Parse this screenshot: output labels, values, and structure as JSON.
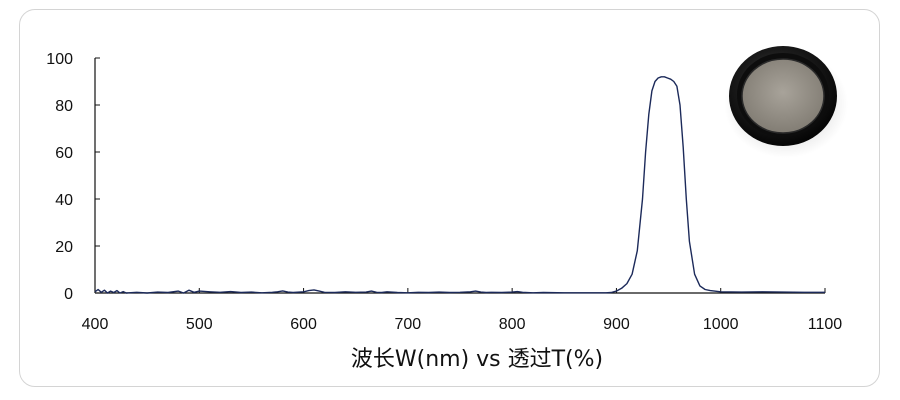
{
  "chart_data": {
    "type": "line",
    "title": "",
    "xlabel": "波长W(nm) vs 透过T(%)",
    "ylabel": "",
    "xlim": [
      400,
      1100
    ],
    "ylim": [
      0,
      100
    ],
    "x_ticks": [
      400,
      500,
      600,
      700,
      800,
      900,
      1000,
      1100
    ],
    "y_ticks": [
      0,
      20,
      40,
      60,
      80,
      100
    ],
    "grid": false,
    "series": [
      {
        "color": "#1c2a5a",
        "x": [
          400,
          403,
          406,
          409,
          412,
          415,
          418,
          421,
          424,
          427,
          430,
          440,
          450,
          460,
          470,
          480,
          485,
          490,
          495,
          500,
          510,
          520,
          530,
          540,
          550,
          560,
          570,
          575,
          580,
          585,
          590,
          600,
          605,
          610,
          615,
          620,
          630,
          640,
          650,
          660,
          665,
          670,
          675,
          680,
          690,
          700,
          710,
          720,
          730,
          740,
          750,
          760,
          765,
          770,
          775,
          780,
          790,
          800,
          805,
          810,
          820,
          830,
          850,
          870,
          880,
          890,
          895,
          900,
          905,
          910,
          915,
          920,
          925,
          928,
          931,
          934,
          937,
          940,
          943,
          946,
          949,
          952,
          955,
          958,
          961,
          964,
          967,
          970,
          975,
          980,
          985,
          990,
          1000,
          1020,
          1040,
          1060,
          1080,
          1100
        ],
        "values": [
          0.5,
          1.5,
          0.3,
          1.2,
          0,
          0.8,
          0.2,
          1.0,
          0,
          0.6,
          0,
          0.3,
          0,
          0.4,
          0.2,
          0.8,
          0,
          1.2,
          0.3,
          0.8,
          0.5,
          0.3,
          0.6,
          0.2,
          0.4,
          0.1,
          0.3,
          0.5,
          0.9,
          0.4,
          0.2,
          0.5,
          1.0,
          1.3,
          0.8,
          0.3,
          0.2,
          0.5,
          0.3,
          0.4,
          0.8,
          0.3,
          0.2,
          0.5,
          0.2,
          0.1,
          0.3,
          0.2,
          0.4,
          0.2,
          0.3,
          0.5,
          0.8,
          0.4,
          0.2,
          0.3,
          0.2,
          0.4,
          0.6,
          0.3,
          0.1,
          0.2,
          0.1,
          0.1,
          0.1,
          0.1,
          0.2,
          0.8,
          2,
          4,
          8,
          18,
          40,
          60,
          76,
          86,
          90,
          91.5,
          92,
          92,
          91.5,
          91,
          90,
          88,
          80,
          62,
          40,
          22,
          8,
          3,
          1.5,
          1,
          0.5,
          0.4,
          0.5,
          0.4,
          0.3,
          0.3
        ]
      }
    ]
  },
  "product_image": {
    "icon": "filter-lens-icon",
    "frame_color": "#1a1a1a",
    "glass_color": "#9a958c"
  }
}
